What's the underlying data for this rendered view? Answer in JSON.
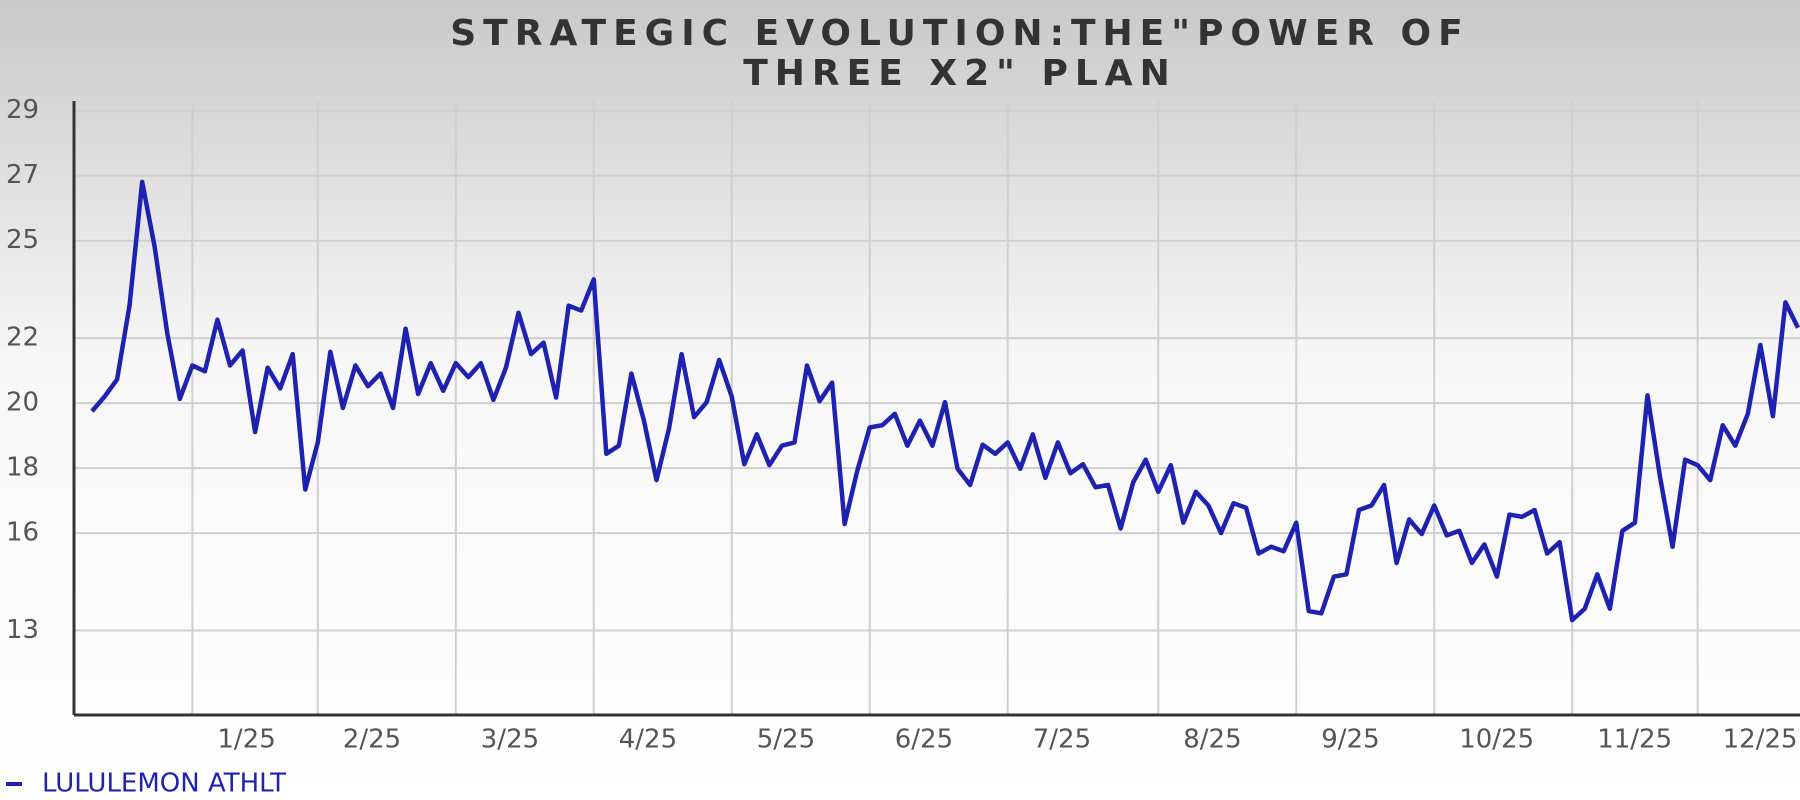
{
  "chart_data": {
    "type": "line",
    "title": "STRATEGIC EVOLUTION:THE\"POWER OF THREE X2\" PLAN",
    "categories": [
      null,
      null,
      null,
      null,
      null,
      null,
      null,
      null,
      "1/25",
      null,
      null,
      null,
      null,
      null,
      null,
      null,
      null,
      null,
      "2/25",
      null,
      null,
      null,
      null,
      null,
      null,
      null,
      null,
      null,
      null,
      "3/25",
      null,
      null,
      null,
      null,
      null,
      null,
      null,
      null,
      null,
      null,
      "4/25",
      null,
      null,
      null,
      null,
      null,
      null,
      null,
      null,
      null,
      null,
      "5/25",
      null,
      null,
      null,
      null,
      null,
      null,
      null,
      null,
      null,
      null,
      "6/25",
      null,
      null,
      null,
      null,
      null,
      null,
      null,
      null,
      null,
      null,
      "7/25",
      null,
      null,
      null,
      null,
      null,
      null,
      null,
      null,
      null,
      null,
      null,
      "8/25",
      null,
      null,
      null,
      null,
      null,
      null,
      null,
      null,
      null,
      null,
      "9/25",
      null,
      null,
      null,
      null,
      null,
      null,
      null,
      null,
      null,
      null,
      "10/25",
      null,
      null,
      null,
      null,
      null,
      null,
      null,
      null,
      null,
      null,
      "11/25",
      null,
      null,
      null,
      null,
      null,
      null,
      null,
      null,
      null,
      "12/25",
      null,
      null,
      null,
      null,
      null,
      null,
      null,
      null
    ],
    "series": [
      {
        "name": "LULULEMON ATHLT",
        "color": "#1f22b0",
        "values": [
          19.75,
          20.2,
          20.73,
          23.03,
          26.81,
          24.8,
          22.15,
          20.13,
          21.16,
          20.98,
          22.57,
          21.16,
          21.62,
          19.11,
          21.09,
          20.45,
          21.51,
          17.34,
          18.79,
          21.58,
          19.85,
          21.16,
          20.52,
          20.91,
          19.85,
          22.29,
          20.28,
          21.23,
          20.38,
          21.23,
          20.8,
          21.23,
          20.1,
          21.09,
          22.78,
          21.51,
          21.86,
          20.17,
          23.0,
          22.85,
          23.81,
          18.44,
          18.69,
          20.91,
          19.46,
          17.63,
          19.22,
          21.51,
          19.57,
          20.03,
          21.33,
          20.2,
          18.12,
          19.04,
          18.09,
          18.69,
          18.79,
          21.16,
          20.06,
          20.63,
          16.28,
          17.91,
          19.25,
          19.32,
          19.67,
          18.69,
          19.46,
          18.69,
          20.03,
          17.98,
          17.48,
          18.72,
          18.44,
          18.79,
          17.98,
          19.04,
          17.7,
          18.79,
          17.84,
          18.12,
          17.41,
          17.48,
          16.14,
          17.56,
          18.26,
          17.27,
          18.09,
          16.32,
          17.27,
          16.85,
          16.0,
          16.92,
          16.78,
          15.37,
          15.58,
          15.44,
          16.32,
          13.6,
          13.53,
          14.66,
          14.73,
          16.71,
          16.85,
          17.48,
          15.08,
          16.42,
          15.97,
          16.85,
          15.93,
          16.07,
          15.08,
          15.65,
          14.66,
          16.57,
          16.5,
          16.71,
          15.37,
          15.72,
          13.32,
          13.67,
          14.73,
          13.67,
          16.07,
          16.32,
          20.24,
          17.73,
          15.58,
          18.26,
          18.09,
          17.63,
          19.32,
          18.69,
          19.67,
          21.79,
          19.6,
          23.1,
          22.32
        ]
      }
    ],
    "ylim": [
      10.4,
      29.3
    ],
    "yticks": [
      29,
      27,
      25,
      22,
      20,
      18,
      16,
      13
    ],
    "grid": true,
    "legend": "bottom-left"
  }
}
